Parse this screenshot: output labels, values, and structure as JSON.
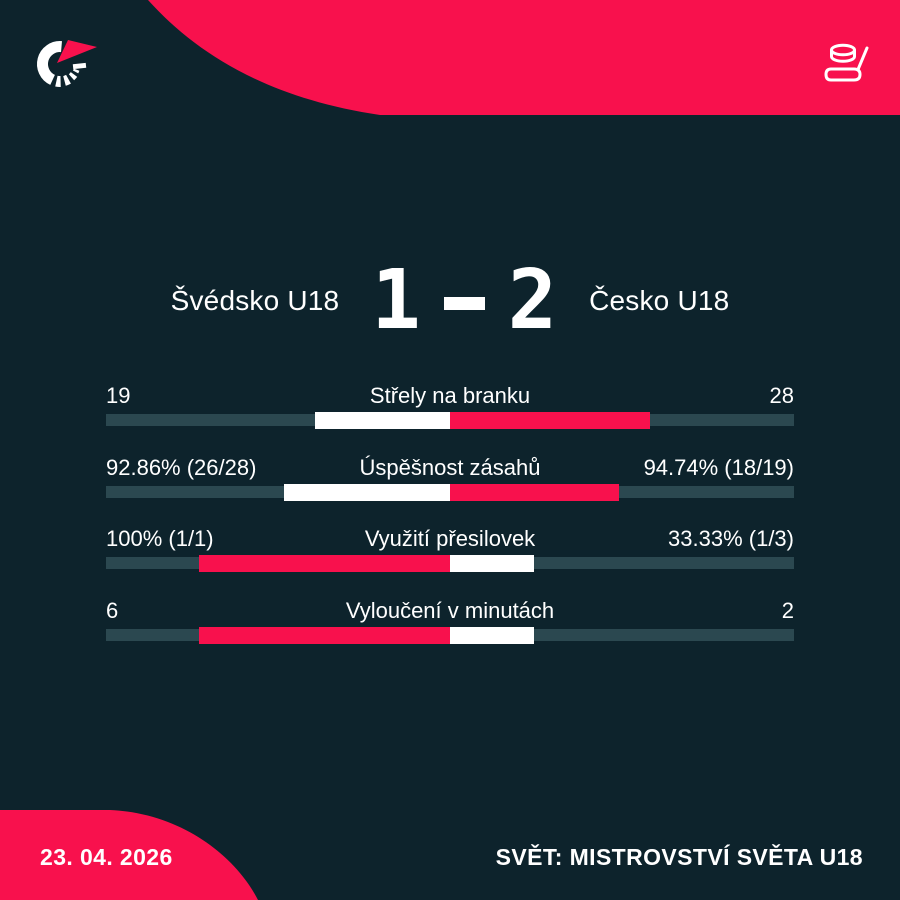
{
  "brand": {
    "bg_dark": "#0d232c",
    "accent_red": "#f8114d",
    "track_teal": "#2b4850",
    "text_white": "#ffffff",
    "logo": "flashscore-logo",
    "sport_icon": "hockey-puck-and-stick-icon"
  },
  "scoreboard": {
    "home_team": "Švédsko U18",
    "away_team": "Česko U18",
    "home_score": "1",
    "separator": "-",
    "away_score": "2"
  },
  "stats": {
    "rows": [
      {
        "label": "Střely na branku",
        "home": "19",
        "away": "28",
        "home_value": 19,
        "away_value": 28,
        "leader": "away"
      },
      {
        "label": "Úspěšnost zásahů",
        "home": "92.86% (26/28)",
        "away": "94.74% (18/19)",
        "home_value": 92.86,
        "away_value": 94.74,
        "leader": "away"
      },
      {
        "label": "Využití přesilovek",
        "home": "100% (1/1)",
        "away": "33.33% (1/3)",
        "home_value": 100,
        "away_value": 33.33,
        "leader": "home"
      },
      {
        "label": "Vyloučení v minutách",
        "home": "6",
        "away": "2",
        "home_value": 6,
        "away_value": 2,
        "leader": "home"
      }
    ]
  },
  "footer": {
    "date": "23. 04. 2026",
    "competition": "SVĚT: MISTROVSTVÍ SVĚTA U18"
  },
  "chart_data": {
    "type": "bar",
    "title": "Švédsko U18 1 - 2 Česko U18",
    "categories": [
      "Střely na branku",
      "Úspěšnost zásahů",
      "Využití přesilovek",
      "Vyloučení v minutách"
    ],
    "series": [
      {
        "name": "Švédsko U18",
        "values": [
          19,
          92.86,
          100,
          6
        ],
        "labels": [
          "19",
          "92.86% (26/28)",
          "100% (1/1)",
          "6"
        ]
      },
      {
        "name": "Česko U18",
        "values": [
          28,
          94.74,
          33.33,
          2
        ],
        "labels": [
          "28",
          "94.74% (18/19)",
          "33.33% (1/3)",
          "2"
        ]
      }
    ],
    "layout": "paired horizontal bars meeting at center; each pair scaled so combined width is constant; larger value colored red, smaller value colored white, on a teal track",
    "legend_position": "none",
    "grid": false
  }
}
